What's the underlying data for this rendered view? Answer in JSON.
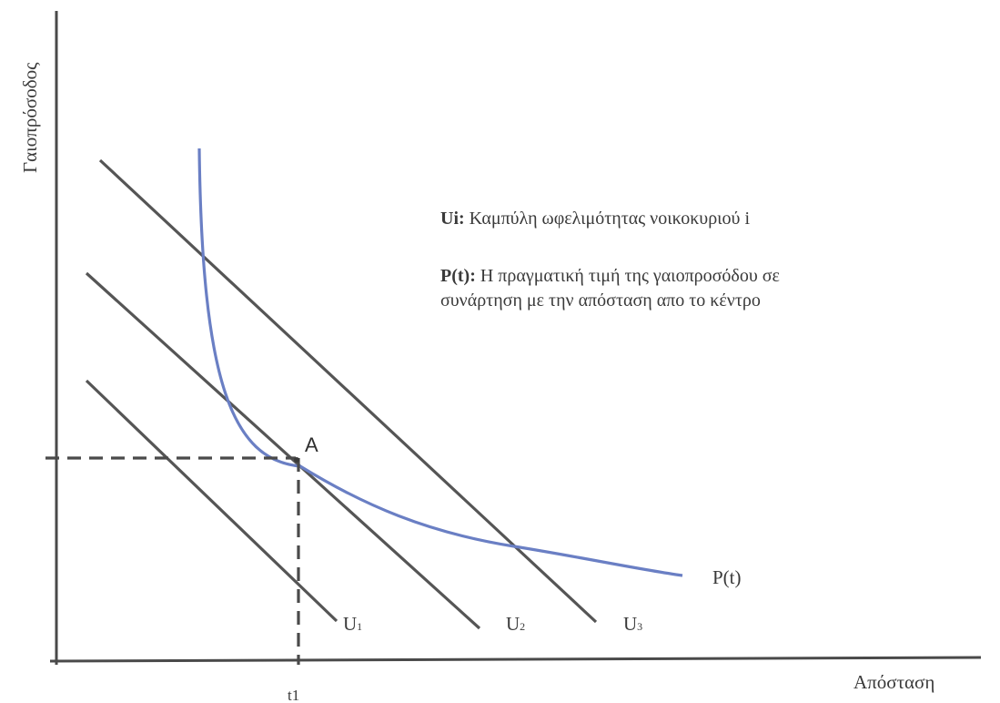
{
  "axes": {
    "y_label": "Γαιοπρόσοδος",
    "x_label": "Απόσταση",
    "x_tick": "t1"
  },
  "curves": {
    "p_label": "P(t)",
    "u_labels": [
      {
        "main": "U",
        "sub": "1"
      },
      {
        "main": "U",
        "sub": "2"
      },
      {
        "main": "U",
        "sub": "3"
      }
    ]
  },
  "point": {
    "label": "A"
  },
  "legend": [
    {
      "key": "Ui:",
      "text": " Καμπύλη ωφελιμότητας νοικοκυριού i"
    },
    {
      "key": "P(t):",
      "text": " Η πραγματική τιμή της γαιοπροσόδου σε"
    },
    {
      "key": "",
      "text": "συνάρτηση με την απόσταση απο το κέντρο"
    }
  ],
  "colors": {
    "p_curve": "#6a7fc4",
    "indifference_lines": "#555555",
    "axes": "#4a4a4a"
  }
}
